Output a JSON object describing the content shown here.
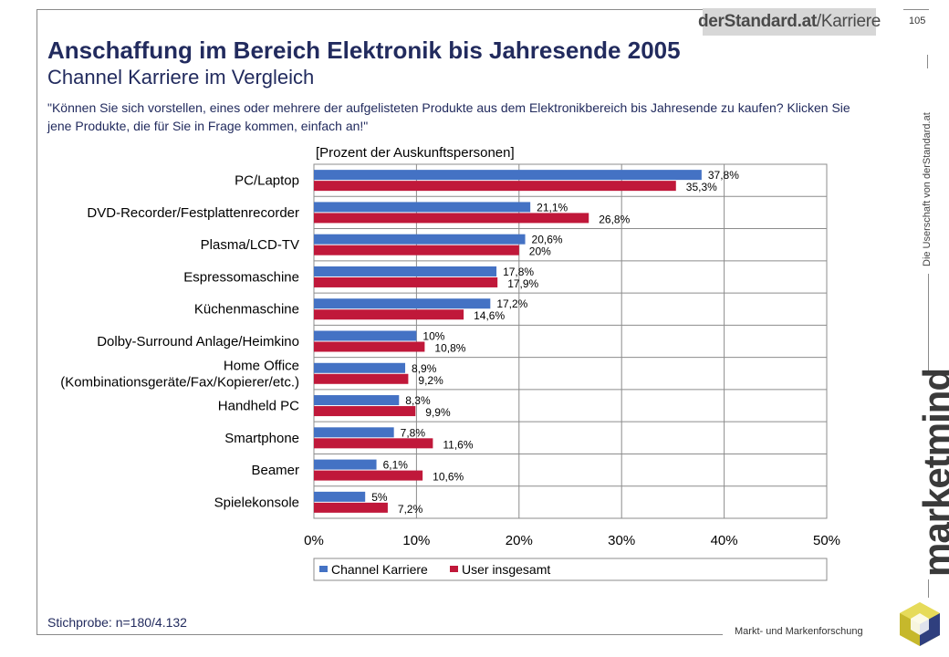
{
  "header": {
    "brand_bold": "derStandard.at",
    "brand_rest": "/Karriere",
    "page_number": "105",
    "side_note": "Die Userschaft von derStandard.at"
  },
  "title": "Anschaffung im Bereich Elektronik bis Jahresende 2005",
  "subtitle": "Channel Karriere im Vergleich",
  "question": "\"Können Sie sich vorstellen, eines oder mehrere der aufgelisteten Produkte aus dem Elektronikbereich bis Jahresende zu kaufen? Klicken Sie jene Produkte, die für Sie in Frage kommen, einfach an!\"",
  "footer": {
    "sample": "Stichprobe: n=180/4.132",
    "company": "Markt- und Markenforschung",
    "logo_text": "marketmind"
  },
  "colors": {
    "series_1": "#4472c4",
    "series_2": "#c0183a",
    "title": "#222b5e"
  },
  "chart_data": {
    "type": "bar",
    "orientation": "horizontal",
    "unit_label": "[Prozent der Auskunftspersonen]",
    "categories": [
      [
        "PC/Laptop"
      ],
      [
        "DVD-Recorder/Festplattenrecorder"
      ],
      [
        "Plasma/LCD-TV"
      ],
      [
        "Espressomaschine"
      ],
      [
        "Küchenmaschine"
      ],
      [
        "Dolby-Surround Anlage/Heimkino"
      ],
      [
        "Home Office",
        "(Kombinationsgeräte/Fax/Kopierer/etc.)"
      ],
      [
        "Handheld PC"
      ],
      [
        "Smartphone"
      ],
      [
        "Beamer"
      ],
      [
        "Spielekonsole"
      ]
    ],
    "series": [
      {
        "name": "Channel Karriere",
        "values": [
          37.8,
          21.1,
          20.6,
          17.8,
          17.2,
          10,
          8.9,
          8.3,
          7.8,
          6.1,
          5
        ],
        "labels": [
          "37,8%",
          "21,1%",
          "20,6%",
          "17,8%",
          "17,2%",
          "10%",
          "8,9%",
          "8,3%",
          "7,8%",
          "6,1%",
          "5%"
        ]
      },
      {
        "name": "User insgesamt",
        "values": [
          35.3,
          26.8,
          20,
          17.9,
          14.6,
          10.8,
          9.2,
          9.9,
          11.6,
          10.6,
          7.2
        ],
        "labels": [
          "35,3%",
          "26,8%",
          "20%",
          "17,9%",
          "14,6%",
          "10,8%",
          "9,2%",
          "9,9%",
          "11,6%",
          "10,6%",
          "7,2%"
        ]
      }
    ],
    "xlim": [
      0,
      50
    ],
    "xticks": [
      0,
      10,
      20,
      30,
      40,
      50
    ],
    "xtick_labels": [
      "0%",
      "10%",
      "20%",
      "30%",
      "40%",
      "50%"
    ],
    "grid": true,
    "legend_position": "bottom"
  }
}
